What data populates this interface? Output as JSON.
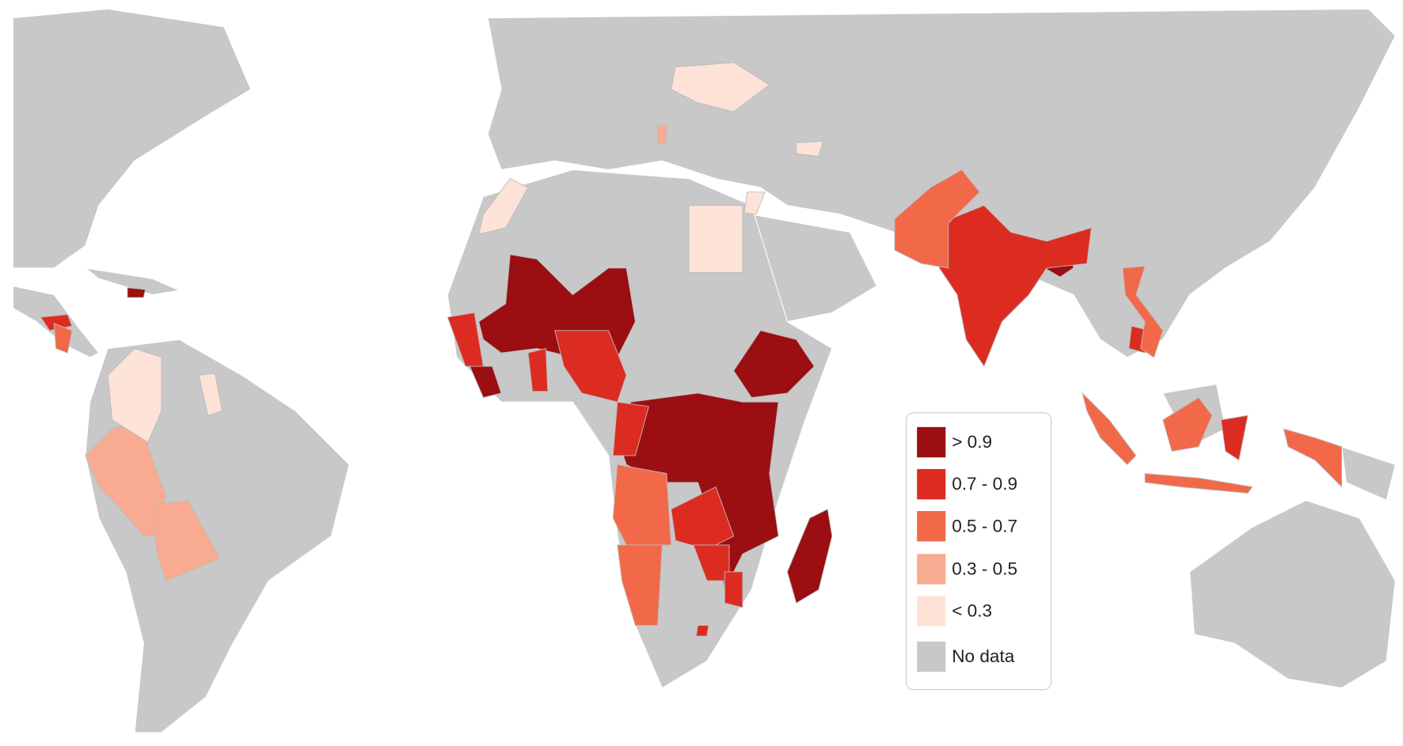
{
  "legend": {
    "items": [
      {
        "label": "> 0.9",
        "color": "#9b0e12"
      },
      {
        "label": "0.7 - 0.9",
        "color": "#dc2c22"
      },
      {
        "label": "0.5 - 0.7",
        "color": "#f2694a"
      },
      {
        "label": "0.3 - 0.5",
        "color": "#f8ab90"
      },
      {
        "label": "< 0.3",
        "color": "#fde3d7"
      },
      {
        "label": "No data",
        "color": "#c8c8c8"
      }
    ]
  }
}
